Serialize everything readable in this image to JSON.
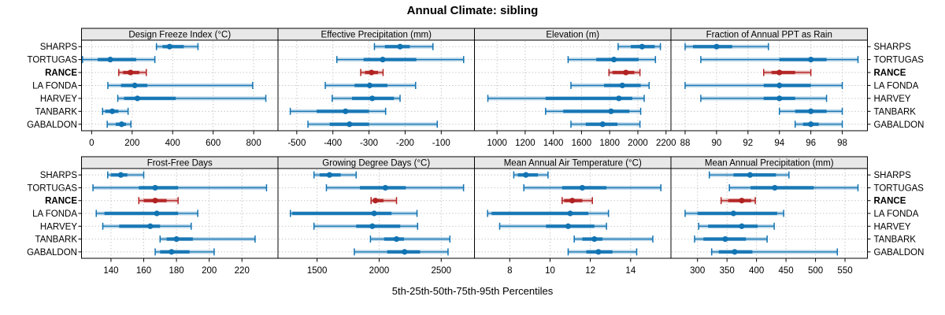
{
  "title": "Annual Climate: sibling",
  "caption": "5th-25th-50th-75th-95th Percentiles",
  "sites": [
    "SHARPS",
    "TORTUGAS",
    "RANCE",
    "LA FONDA",
    "HARVEY",
    "TANBARK",
    "GABALDON"
  ],
  "highlight_site": "RANCE",
  "colors": {
    "primary": "#1173b2",
    "highlight": "#b22222",
    "strip_bg": "#e8e8e8",
    "panel_border": "#000000",
    "grid": "#c9c9c9",
    "text": "#000000"
  },
  "chart_data": {
    "type": "dot-whisker-trellis",
    "percentile_labels": [
      "5th",
      "25th",
      "50th",
      "75th",
      "95th"
    ],
    "legend_note": "each row shows 5th-25th-50th-75th-95th percentile whisker, band and median dot",
    "grid": "dotted",
    "panels": [
      {
        "title": "Design Freeze Index (°C)",
        "row": 0,
        "col": 0,
        "xlim": [
          -50,
          920
        ],
        "ticks": [
          0,
          200,
          400,
          600,
          800
        ],
        "series": [
          [
            320,
            350,
            385,
            455,
            525
          ],
          [
            -45,
            30,
            92,
            220,
            312
          ],
          [
            134,
            155,
            192,
            235,
            270
          ],
          [
            80,
            145,
            213,
            275,
            795
          ],
          [
            129,
            160,
            226,
            415,
            860
          ],
          [
            54,
            67,
            102,
            132,
            180
          ],
          [
            77,
            119,
            148,
            170,
            194
          ]
        ]
      },
      {
        "title": "Effective Precipitation (mm)",
        "row": 0,
        "col": 1,
        "xlim": [
          -552,
          -8
        ],
        "ticks": [
          -500,
          -400,
          -300,
          -200,
          -100
        ],
        "series": [
          [
            -285,
            -256,
            -214,
            -187,
            -123
          ],
          [
            -389,
            -315,
            -262,
            -169,
            -38
          ],
          [
            -323,
            -311,
            -293,
            -275,
            -261
          ],
          [
            -421,
            -340,
            -298,
            -249,
            -171
          ],
          [
            -402,
            -347,
            -291,
            -231,
            -214
          ],
          [
            -518,
            -445,
            -365,
            -300,
            -254
          ],
          [
            -469,
            -409,
            -354,
            -300,
            -111
          ]
        ]
      },
      {
        "title": "Elevation (m)",
        "row": 0,
        "col": 2,
        "xlim": [
          840,
          2235
        ],
        "ticks": [
          1000,
          1200,
          1400,
          1600,
          1800,
          2000,
          2200
        ],
        "series": [
          [
            1860,
            1950,
            2030,
            2120,
            2160
          ],
          [
            1505,
            1705,
            1830,
            2005,
            2125
          ],
          [
            1795,
            1820,
            1915,
            1975,
            2015
          ],
          [
            1525,
            1760,
            1890,
            2020,
            2080
          ],
          [
            935,
            1345,
            1865,
            1960,
            2045
          ],
          [
            1345,
            1470,
            1810,
            1940,
            2020
          ],
          [
            1525,
            1630,
            1750,
            1855,
            2015
          ]
        ]
      },
      {
        "title": "Fraction of Annual PPT as Rain",
        "row": 0,
        "col": 3,
        "xlim": [
          87.1,
          99.6
        ],
        "ticks": [
          88,
          90,
          92,
          94,
          96,
          98
        ],
        "series": [
          [
            88,
            88.5,
            90,
            91,
            93.3
          ],
          [
            89,
            94,
            96,
            97,
            99
          ],
          [
            93,
            93.5,
            94,
            95,
            96
          ],
          [
            88,
            93,
            94,
            96,
            98
          ],
          [
            89,
            93,
            94,
            95,
            97
          ],
          [
            94,
            95,
            96,
            97,
            98
          ],
          [
            95,
            95.5,
            96,
            96.5,
            98
          ]
        ]
      },
      {
        "title": "Frost-Free Days",
        "row": 1,
        "col": 0,
        "xlim": [
          122,
          242
        ],
        "ticks": [
          140,
          160,
          180,
          200,
          220
        ],
        "series": [
          [
            138,
            140,
            146,
            150,
            160
          ],
          [
            129,
            157,
            167,
            181,
            235
          ],
          [
            157,
            160,
            167,
            174,
            181
          ],
          [
            131,
            136,
            168,
            181,
            193
          ],
          [
            135,
            145,
            164,
            170,
            189
          ],
          [
            170,
            174,
            180,
            190,
            228
          ],
          [
            167,
            170,
            177,
            188,
            203
          ]
        ]
      },
      {
        "title": "Growing Degree Days (°C)",
        "row": 1,
        "col": 1,
        "xlim": [
          1185,
          2768
        ],
        "ticks": [
          1500,
          2000,
          2500
        ],
        "series": [
          [
            1475,
            1520,
            1600,
            1690,
            1815
          ],
          [
            1575,
            1845,
            2050,
            2215,
            2680
          ],
          [
            1935,
            1950,
            1970,
            2035,
            2140
          ],
          [
            1285,
            1300,
            1960,
            2100,
            2305
          ],
          [
            1475,
            1815,
            1945,
            2170,
            2310
          ],
          [
            1930,
            2040,
            2140,
            2200,
            2570
          ],
          [
            1800,
            2065,
            2205,
            2330,
            2555
          ]
        ]
      },
      {
        "title": "Mean Annual Air Temperature (°C)",
        "row": 1,
        "col": 2,
        "xlim": [
          6.25,
          16
        ],
        "ticks": [
          8,
          10,
          12,
          14
        ],
        "series": [
          [
            8.2,
            8.4,
            8.8,
            9.4,
            9.9
          ],
          [
            8.7,
            10.6,
            11.6,
            12.8,
            15.5
          ],
          [
            10.6,
            10.7,
            11.1,
            11.6,
            12.1
          ],
          [
            6.9,
            7.1,
            11.0,
            11.9,
            12.9
          ],
          [
            7.5,
            9.8,
            10.9,
            12.2,
            12.8
          ],
          [
            11.2,
            11.6,
            12.2,
            12.6,
            15.1
          ],
          [
            10.9,
            11.8,
            12.4,
            13.1,
            14.3
          ]
        ]
      },
      {
        "title": "Mean Annual Precipitation (mm)",
        "row": 1,
        "col": 3,
        "xlim": [
          255,
          588
        ],
        "ticks": [
          300,
          350,
          400,
          450,
          500,
          550
        ],
        "series": [
          [
            320,
            361,
            389,
            433,
            455
          ],
          [
            354,
            390,
            431,
            497,
            572
          ],
          [
            340,
            352,
            375,
            391,
            398
          ],
          [
            279,
            300,
            361,
            435,
            446
          ],
          [
            302,
            318,
            375,
            402,
            430
          ],
          [
            295,
            310,
            347,
            382,
            418
          ],
          [
            324,
            336,
            363,
            393,
            537
          ]
        ]
      }
    ]
  }
}
